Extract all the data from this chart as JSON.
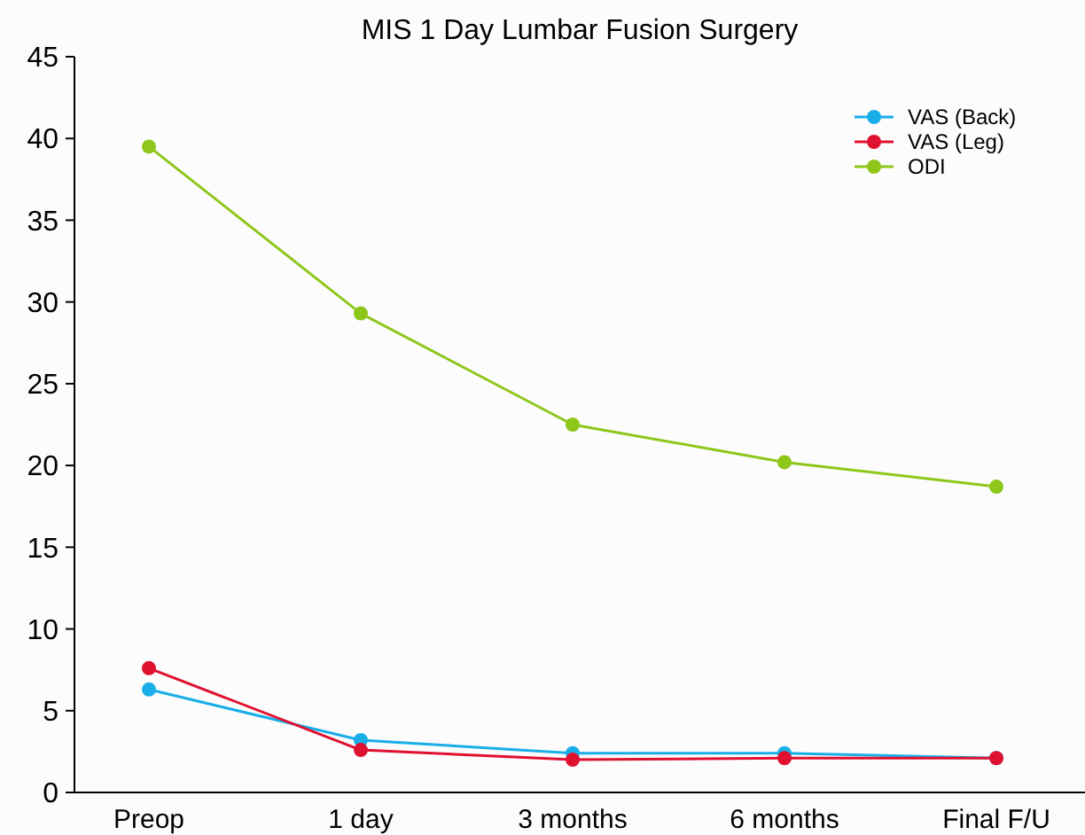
{
  "chart_data": {
    "type": "line",
    "title": "MIS 1 Day Lumbar Fusion Surgery",
    "categories": [
      "Preop",
      "1 day",
      "3 months",
      "6 months",
      "Final F/U"
    ],
    "series": [
      {
        "name": "VAS (Back)",
        "color": "#1aaee8",
        "values": [
          6.3,
          3.2,
          2.4,
          2.4,
          2.1
        ]
      },
      {
        "name": "VAS (Leg)",
        "color": "#e0102f",
        "values": [
          7.6,
          2.6,
          2.0,
          2.1,
          2.1
        ]
      },
      {
        "name": "ODI",
        "color": "#8ec61a",
        "values": [
          39.5,
          29.3,
          22.5,
          20.2,
          18.7
        ]
      }
    ],
    "ylim": [
      0,
      45
    ],
    "yticks": [
      0,
      5,
      10,
      15,
      20,
      25,
      30,
      35,
      40,
      45
    ],
    "grid": false,
    "legend": "top right",
    "marker": "circle",
    "line_style": "solid"
  }
}
